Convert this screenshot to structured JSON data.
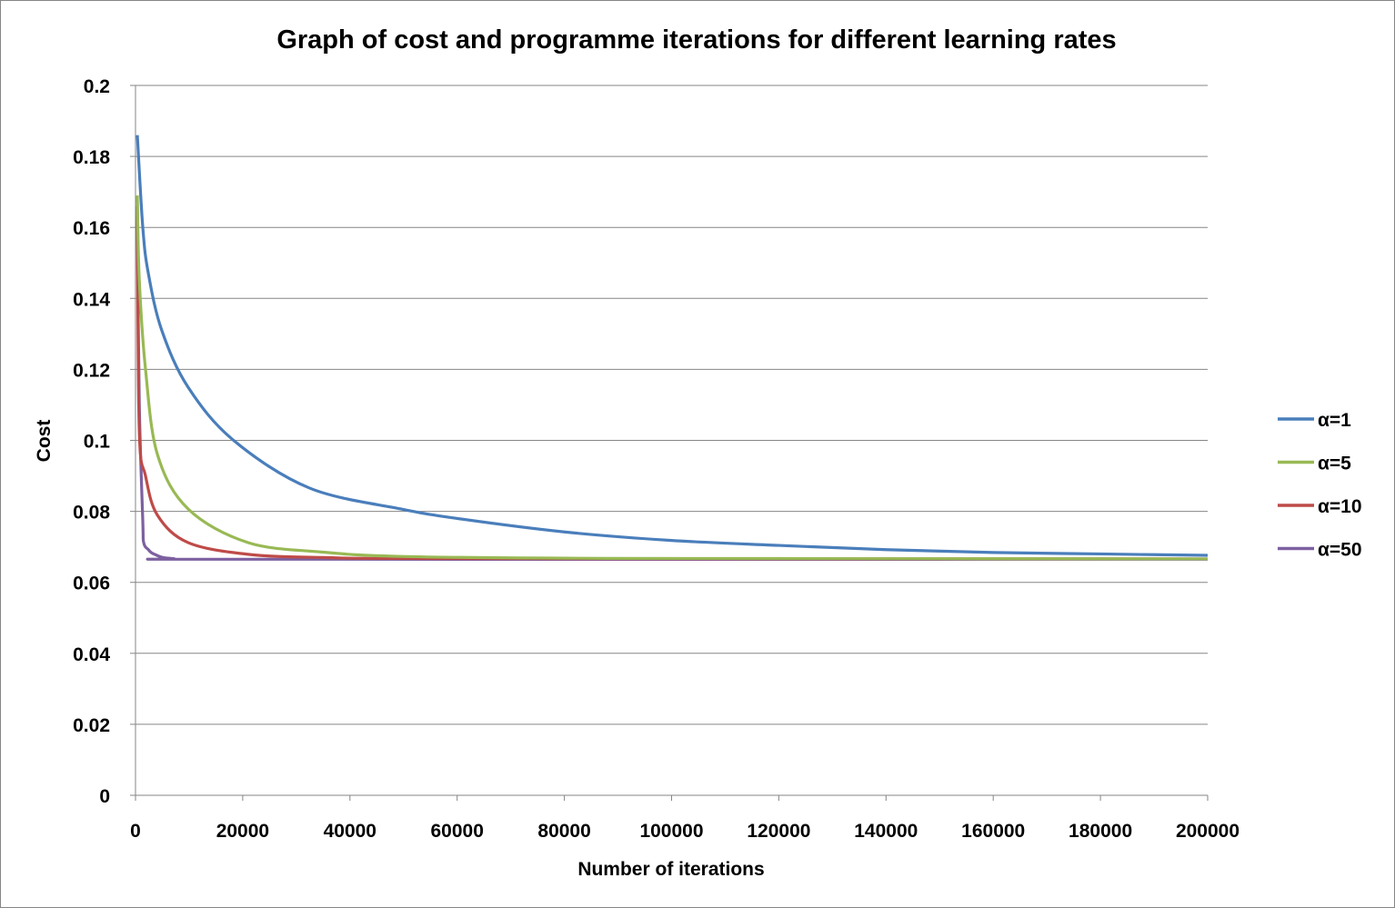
{
  "chart_data": {
    "type": "line",
    "title": "Graph of cost and programme iterations for different learning rates",
    "xlabel": "Number of iterations",
    "ylabel": "Cost",
    "xlim": [
      0,
      200000
    ],
    "ylim": [
      0,
      0.2
    ],
    "xticks": [
      "0",
      "20000",
      "40000",
      "60000",
      "80000",
      "100000",
      "120000",
      "140000",
      "160000",
      "180000",
      "200000"
    ],
    "yticks": [
      "0",
      "0.02",
      "0.04",
      "0.06",
      "0.08",
      "0.1",
      "0.12",
      "0.14",
      "0.16",
      "0.18",
      "0.2"
    ],
    "grid": "horizontal",
    "legend_position": "right",
    "series": [
      {
        "name": "α=1",
        "color": "#4a7ebb",
        "x": [
          340,
          1360,
          2400,
          4900,
          9800,
          18300,
          32400,
          49400,
          60000,
          80000,
          100000,
          120000,
          140000,
          160000,
          180000,
          200000
        ],
        "y": [
          0.186,
          0.16,
          0.147,
          0.131,
          0.115,
          0.1,
          0.0866,
          0.0807,
          0.078,
          0.0742,
          0.0718,
          0.0704,
          0.0692,
          0.0684,
          0.068,
          0.0676
        ]
      },
      {
        "name": "α=5",
        "color": "#98b954",
        "x": [
          340,
          700,
          1870,
          4100,
          9800,
          21000,
          35000,
          49400,
          80000,
          120000,
          200000
        ],
        "y": [
          0.169,
          0.1455,
          0.12,
          0.096,
          0.0807,
          0.0712,
          0.0685,
          0.0673,
          0.0668,
          0.0667,
          0.0666
        ]
      },
      {
        "name": "α=10",
        "color": "#be4b48",
        "x": [
          340,
          700,
          1870,
          4100,
          9800,
          21000,
          35000,
          60000,
          200000
        ],
        "y": [
          0.166,
          0.103,
          0.09,
          0.0789,
          0.0712,
          0.0679,
          0.067,
          0.0667,
          0.0666
        ]
      },
      {
        "name": "α=50",
        "color": "#7d60a0",
        "x": [
          340,
          700,
          1360,
          1530,
          2400,
          3560,
          7000,
          20000,
          200000
        ],
        "y": [
          0.163,
          0.111,
          0.0773,
          0.0712,
          0.0692,
          0.0679,
          0.0667,
          0.0665,
          0.0665
        ]
      }
    ]
  }
}
